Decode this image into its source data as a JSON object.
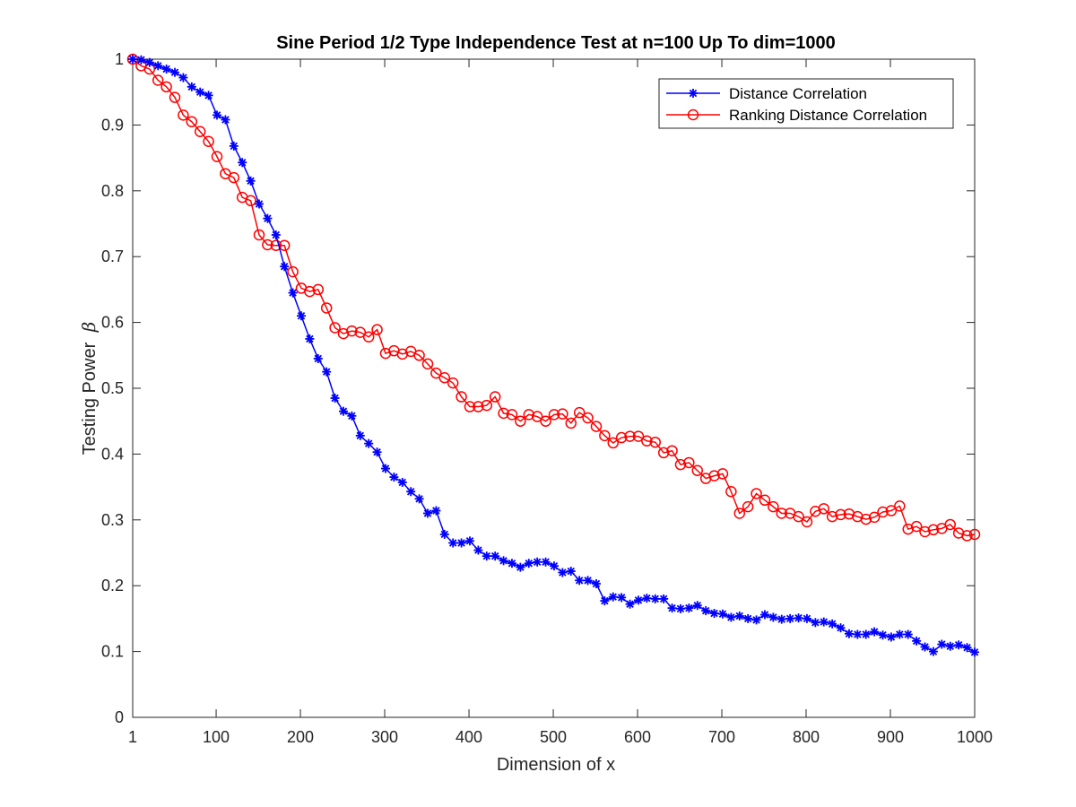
{
  "chart_data": {
    "type": "line",
    "title": "Sine Period 1/2 Type Independence Test at n=100 Up To dim=1000",
    "xlabel": "Dimension of x",
    "ylabel": "Testing Power",
    "ylabel_symbol": "β",
    "xlim": [
      1,
      1000
    ],
    "ylim": [
      0,
      1
    ],
    "xticks": [
      1,
      100,
      200,
      300,
      400,
      500,
      600,
      700,
      800,
      900,
      1000
    ],
    "yticks": [
      0,
      0.1,
      0.2,
      0.3,
      0.4,
      0.5,
      0.6,
      0.7,
      0.8,
      0.9,
      1
    ],
    "xtick_labels": [
      "1",
      "100",
      "200",
      "300",
      "400",
      "500",
      "600",
      "700",
      "800",
      "900",
      "1000"
    ],
    "ytick_labels": [
      "0",
      "0.1",
      "0.2",
      "0.3",
      "0.4",
      "0.5",
      "0.6",
      "0.7",
      "0.8",
      "0.9",
      "1"
    ],
    "grid": false,
    "legend_position": "top-right",
    "x": [
      1,
      11,
      21,
      31,
      41,
      51,
      61,
      71,
      81,
      91,
      101,
      111,
      121,
      131,
      141,
      151,
      161,
      171,
      181,
      191,
      201,
      211,
      221,
      231,
      241,
      251,
      261,
      271,
      281,
      291,
      301,
      311,
      321,
      331,
      341,
      351,
      361,
      371,
      381,
      391,
      401,
      411,
      421,
      431,
      441,
      451,
      461,
      471,
      481,
      491,
      501,
      511,
      521,
      531,
      541,
      551,
      561,
      571,
      581,
      591,
      601,
      611,
      621,
      631,
      641,
      651,
      661,
      671,
      681,
      691,
      701,
      711,
      721,
      731,
      741,
      751,
      761,
      771,
      781,
      791,
      801,
      811,
      821,
      831,
      841,
      851,
      861,
      871,
      881,
      891,
      901,
      911,
      921,
      931,
      941,
      951,
      961,
      971,
      981,
      991,
      1000
    ],
    "series": [
      {
        "name": "Distance Correlation",
        "color": "#0000ff",
        "marker": "asterisk",
        "values": [
          1.0,
          0.999,
          0.995,
          0.99,
          0.985,
          0.98,
          0.972,
          0.958,
          0.95,
          0.945,
          0.915,
          0.908,
          0.868,
          0.843,
          0.815,
          0.78,
          0.758,
          0.733,
          0.685,
          0.645,
          0.61,
          0.575,
          0.545,
          0.525,
          0.485,
          0.465,
          0.458,
          0.428,
          0.416,
          0.403,
          0.378,
          0.365,
          0.357,
          0.343,
          0.332,
          0.31,
          0.314,
          0.278,
          0.265,
          0.265,
          0.268,
          0.254,
          0.245,
          0.245,
          0.238,
          0.234,
          0.228,
          0.234,
          0.236,
          0.236,
          0.23,
          0.22,
          0.222,
          0.208,
          0.208,
          0.203,
          0.177,
          0.183,
          0.182,
          0.172,
          0.178,
          0.181,
          0.18,
          0.18,
          0.166,
          0.165,
          0.166,
          0.17,
          0.162,
          0.158,
          0.157,
          0.152,
          0.154,
          0.15,
          0.148,
          0.156,
          0.152,
          0.149,
          0.15,
          0.151,
          0.15,
          0.144,
          0.145,
          0.142,
          0.136,
          0.127,
          0.126,
          0.126,
          0.13,
          0.125,
          0.122,
          0.126,
          0.126,
          0.116,
          0.107,
          0.1,
          0.111,
          0.108,
          0.11,
          0.106,
          0.099
        ]
      },
      {
        "name": "Ranking Distance Correlation",
        "color": "#ff0000",
        "marker": "circle",
        "values": [
          1.0,
          0.99,
          0.985,
          0.968,
          0.958,
          0.942,
          0.915,
          0.905,
          0.89,
          0.875,
          0.852,
          0.826,
          0.82,
          0.79,
          0.785,
          0.733,
          0.718,
          0.717,
          0.717,
          0.677,
          0.652,
          0.647,
          0.65,
          0.622,
          0.592,
          0.583,
          0.587,
          0.585,
          0.578,
          0.589,
          0.553,
          0.557,
          0.552,
          0.556,
          0.55,
          0.537,
          0.523,
          0.516,
          0.508,
          0.487,
          0.472,
          0.472,
          0.474,
          0.487,
          0.462,
          0.46,
          0.45,
          0.46,
          0.457,
          0.45,
          0.46,
          0.461,
          0.447,
          0.463,
          0.455,
          0.442,
          0.428,
          0.417,
          0.425,
          0.427,
          0.427,
          0.42,
          0.418,
          0.402,
          0.405,
          0.384,
          0.387,
          0.375,
          0.363,
          0.367,
          0.37,
          0.343,
          0.31,
          0.32,
          0.34,
          0.33,
          0.32,
          0.31,
          0.31,
          0.305,
          0.297,
          0.313,
          0.317,
          0.305,
          0.308,
          0.309,
          0.305,
          0.301,
          0.304,
          0.312,
          0.314,
          0.321,
          0.286,
          0.29,
          0.282,
          0.285,
          0.287,
          0.293,
          0.28,
          0.276,
          0.278
        ]
      }
    ]
  }
}
